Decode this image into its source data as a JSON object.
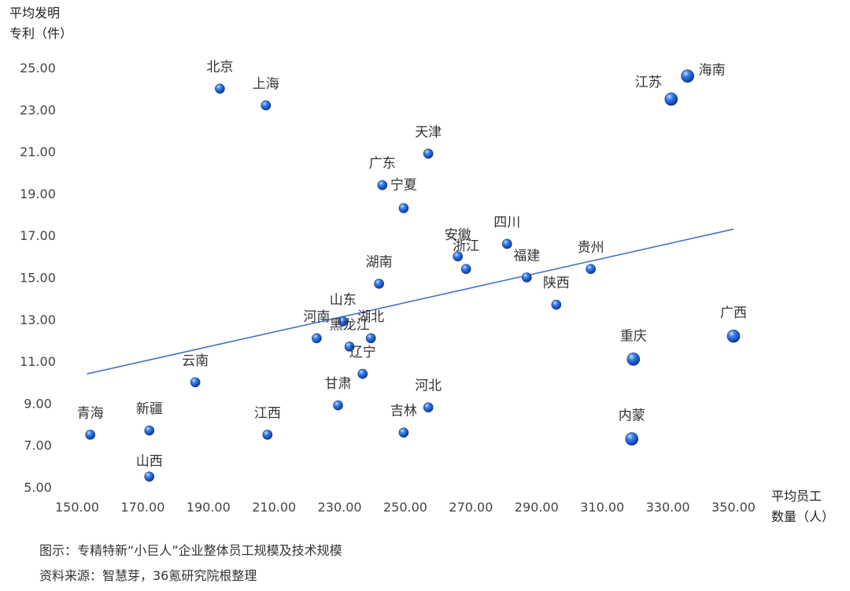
{
  "chart_data": {
    "type": "scatter",
    "title": "",
    "ylabel_line1": "平均发明",
    "ylabel_line2": "专利（件）",
    "xlabel_line1": "平均员工",
    "xlabel_line2": "数量（人）",
    "xlim": [
      150,
      350
    ],
    "ylim": [
      5,
      25
    ],
    "x_ticks": [
      "150.00",
      "170.00",
      "190.00",
      "210.00",
      "230.00",
      "250.00",
      "270.00",
      "290.00",
      "310.00",
      "330.00",
      "350.00"
    ],
    "y_ticks": [
      "5.00",
      "7.00",
      "9.00",
      "11.00",
      "13.00",
      "15.00",
      "17.00",
      "19.00",
      "21.00",
      "23.00",
      "25.00"
    ],
    "grid": false,
    "trendline": {
      "x": [
        153,
        350
      ],
      "y": [
        10.4,
        17.3
      ]
    },
    "points": [
      {
        "label": "北京",
        "x": 193.5,
        "y": 24.0
      },
      {
        "label": "上海",
        "x": 207.5,
        "y": 23.2
      },
      {
        "label": "天津",
        "x": 257,
        "y": 20.9
      },
      {
        "label": "广东",
        "x": 243,
        "y": 19.4
      },
      {
        "label": "宁夏",
        "x": 249.5,
        "y": 18.3
      },
      {
        "label": "安徽",
        "x": 266,
        "y": 16.0
      },
      {
        "label": "浙江",
        "x": 268.5,
        "y": 15.4
      },
      {
        "label": "四川",
        "x": 281,
        "y": 16.6
      },
      {
        "label": "福建",
        "x": 287,
        "y": 15.0
      },
      {
        "label": "贵州",
        "x": 306.5,
        "y": 15.4
      },
      {
        "label": "湖南",
        "x": 242,
        "y": 14.7
      },
      {
        "label": "陕西",
        "x": 296,
        "y": 13.7
      },
      {
        "label": "山东",
        "x": 231,
        "y": 12.9
      },
      {
        "label": "河南",
        "x": 223,
        "y": 12.1
      },
      {
        "label": "黑龙江",
        "x": 233,
        "y": 11.7
      },
      {
        "label": "湖北",
        "x": 239.5,
        "y": 12.1
      },
      {
        "label": "辽宁",
        "x": 237,
        "y": 10.4
      },
      {
        "label": "云南",
        "x": 186,
        "y": 10.0
      },
      {
        "label": "甘肃",
        "x": 229.5,
        "y": 8.9
      },
      {
        "label": "河北",
        "x": 257,
        "y": 8.8
      },
      {
        "label": "吉林",
        "x": 249.5,
        "y": 7.6
      },
      {
        "label": "江西",
        "x": 208,
        "y": 7.5
      },
      {
        "label": "新疆",
        "x": 172,
        "y": 7.7
      },
      {
        "label": "青海",
        "x": 154,
        "y": 7.5
      },
      {
        "label": "山西",
        "x": 172,
        "y": 5.5
      },
      {
        "label": "江苏",
        "x": 331,
        "y": 23.5
      },
      {
        "label": "海南",
        "x": 336,
        "y": 24.6
      },
      {
        "label": "重庆",
        "x": 319.5,
        "y": 11.1
      },
      {
        "label": "内蒙",
        "x": 319,
        "y": 7.3
      },
      {
        "label": "广西",
        "x": 350,
        "y": 12.2
      }
    ],
    "colors": {
      "point": "#1f5fd0",
      "trendline": "#4472c4"
    }
  },
  "caption1": "图示：专精特新“小巨人”企业整体员工规模及技术规模",
  "caption2": "资料来源：智慧芽，36氪研究院根整理"
}
